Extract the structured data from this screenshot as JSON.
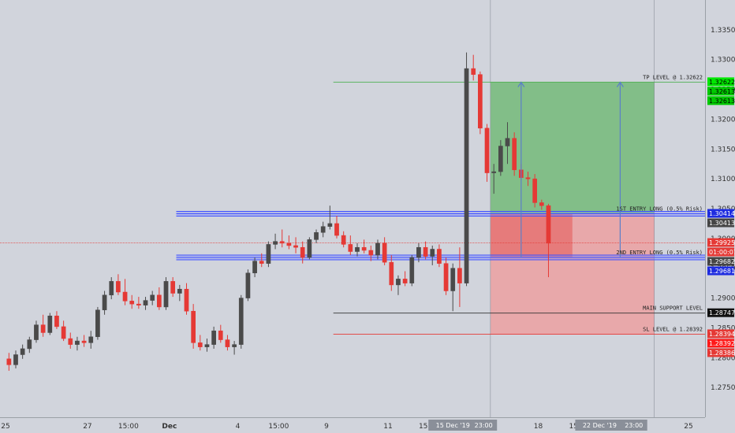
{
  "chart_data": {
    "type": "candlestick",
    "ylim": [
      1.27,
      1.34
    ],
    "y_ticks": [
      1.275,
      1.28,
      1.285,
      1.29,
      1.295,
      1.3,
      1.305,
      1.31,
      1.315,
      1.32,
      1.325,
      1.33,
      1.335
    ],
    "y_tick_labels": [
      "1.27500",
      "1.28000",
      "1.28500",
      "1.29000",
      "1.29500",
      "1.30000",
      "1.30500",
      "1.31000",
      "1.31500",
      "1.32000",
      "1.32500",
      "1.33000",
      "1.33500"
    ],
    "x_ticks": [
      {
        "label": "25",
        "x": 0
      },
      {
        "label": "27",
        "x": 12
      },
      {
        "label": "15:00",
        "x": 18
      },
      {
        "label": "Dec",
        "x": 24
      },
      {
        "label": "4",
        "x": 34
      },
      {
        "label": "15:00",
        "x": 40
      },
      {
        "label": "9",
        "x": 47
      },
      {
        "label": "11",
        "x": 56
      },
      {
        "label": "15:00",
        "x": 62
      },
      {
        "label": "18",
        "x": 78
      },
      {
        "label": "15:00",
        "x": 84
      },
      {
        "label": "25",
        "x": 100
      }
    ],
    "x_range_labels": [
      {
        "label": "15 Dec '19",
        "x": 65.5
      },
      {
        "label": "23:00",
        "x": 70
      },
      {
        "label": "22 Dec '19",
        "x": 87
      },
      {
        "label": "23:00",
        "x": 92
      }
    ],
    "candles": [
      {
        "x": 0.5,
        "o": 1.2798,
        "h": 1.2808,
        "l": 1.2778,
        "c": 1.2788
      },
      {
        "x": 1.5,
        "o": 1.2788,
        "h": 1.2812,
        "l": 1.2782,
        "c": 1.2805
      },
      {
        "x": 2.5,
        "o": 1.2805,
        "h": 1.2822,
        "l": 1.2798,
        "c": 1.2815
      },
      {
        "x": 3.5,
        "o": 1.2815,
        "h": 1.2835,
        "l": 1.2808,
        "c": 1.283
      },
      {
        "x": 4.5,
        "o": 1.283,
        "h": 1.2862,
        "l": 1.2825,
        "c": 1.2855
      },
      {
        "x": 5.5,
        "o": 1.2855,
        "h": 1.2872,
        "l": 1.2835,
        "c": 1.2842
      },
      {
        "x": 6.5,
        "o": 1.2842,
        "h": 1.2875,
        "l": 1.2838,
        "c": 1.287
      },
      {
        "x": 7.5,
        "o": 1.287,
        "h": 1.2878,
        "l": 1.2848,
        "c": 1.2852
      },
      {
        "x": 8.5,
        "o": 1.2852,
        "h": 1.2862,
        "l": 1.2828,
        "c": 1.2832
      },
      {
        "x": 9.5,
        "o": 1.2832,
        "h": 1.2842,
        "l": 1.2815,
        "c": 1.2822
      },
      {
        "x": 10.5,
        "o": 1.2822,
        "h": 1.2835,
        "l": 1.2812,
        "c": 1.2828
      },
      {
        "x": 11.5,
        "o": 1.2828,
        "h": 1.2838,
        "l": 1.2818,
        "c": 1.2825
      },
      {
        "x": 12.5,
        "o": 1.2825,
        "h": 1.2845,
        "l": 1.2815,
        "c": 1.2835
      },
      {
        "x": 13.5,
        "o": 1.2835,
        "h": 1.2885,
        "l": 1.283,
        "c": 1.288
      },
      {
        "x": 14.5,
        "o": 1.288,
        "h": 1.2912,
        "l": 1.2872,
        "c": 1.2905
      },
      {
        "x": 15.5,
        "o": 1.2905,
        "h": 1.2935,
        "l": 1.2898,
        "c": 1.2928
      },
      {
        "x": 16.5,
        "o": 1.2928,
        "h": 1.294,
        "l": 1.2905,
        "c": 1.291
      },
      {
        "x": 17.5,
        "o": 1.291,
        "h": 1.2932,
        "l": 1.2888,
        "c": 1.2895
      },
      {
        "x": 18.5,
        "o": 1.2895,
        "h": 1.2905,
        "l": 1.2882,
        "c": 1.289
      },
      {
        "x": 19.5,
        "o": 1.289,
        "h": 1.2902,
        "l": 1.2882,
        "c": 1.2888
      },
      {
        "x": 20.5,
        "o": 1.2888,
        "h": 1.2902,
        "l": 1.288,
        "c": 1.2896
      },
      {
        "x": 21.5,
        "o": 1.2896,
        "h": 1.2912,
        "l": 1.2888,
        "c": 1.2905
      },
      {
        "x": 22.5,
        "o": 1.2905,
        "h": 1.2918,
        "l": 1.288,
        "c": 1.2885
      },
      {
        "x": 23.5,
        "o": 1.2885,
        "h": 1.2935,
        "l": 1.288,
        "c": 1.2928
      },
      {
        "x": 24.5,
        "o": 1.2928,
        "h": 1.2935,
        "l": 1.2902,
        "c": 1.2908
      },
      {
        "x": 25.5,
        "o": 1.2908,
        "h": 1.2922,
        "l": 1.2895,
        "c": 1.2915
      },
      {
        "x": 26.5,
        "o": 1.2915,
        "h": 1.2925,
        "l": 1.2872,
        "c": 1.2878
      },
      {
        "x": 27.5,
        "o": 1.2878,
        "h": 1.289,
        "l": 1.2815,
        "c": 1.2825
      },
      {
        "x": 28.5,
        "o": 1.2825,
        "h": 1.2838,
        "l": 1.2812,
        "c": 1.2818
      },
      {
        "x": 29.5,
        "o": 1.2818,
        "h": 1.2832,
        "l": 1.281,
        "c": 1.2822
      },
      {
        "x": 30.5,
        "o": 1.2822,
        "h": 1.2852,
        "l": 1.2815,
        "c": 1.2845
      },
      {
        "x": 31.5,
        "o": 1.2845,
        "h": 1.2855,
        "l": 1.2825,
        "c": 1.283
      },
      {
        "x": 32.5,
        "o": 1.283,
        "h": 1.2838,
        "l": 1.2812,
        "c": 1.2818
      },
      {
        "x": 33.5,
        "o": 1.2818,
        "h": 1.2828,
        "l": 1.2805,
        "c": 1.2822
      },
      {
        "x": 34.5,
        "o": 1.2822,
        "h": 1.2905,
        "l": 1.2815,
        "c": 1.29
      },
      {
        "x": 35.5,
        "o": 1.29,
        "h": 1.2948,
        "l": 1.2895,
        "c": 1.2942
      },
      {
        "x": 36.5,
        "o": 1.2942,
        "h": 1.2968,
        "l": 1.2935,
        "c": 1.2962
      },
      {
        "x": 37.5,
        "o": 1.2962,
        "h": 1.2975,
        "l": 1.2952,
        "c": 1.2958
      },
      {
        "x": 38.5,
        "o": 1.2958,
        "h": 1.2995,
        "l": 1.2952,
        "c": 1.299
      },
      {
        "x": 39.5,
        "o": 1.299,
        "h": 1.3008,
        "l": 1.2982,
        "c": 1.2995
      },
      {
        "x": 40.5,
        "o": 1.2995,
        "h": 1.3015,
        "l": 1.2985,
        "c": 1.2992
      },
      {
        "x": 41.5,
        "o": 1.2992,
        "h": 1.3005,
        "l": 1.2982,
        "c": 1.2988
      },
      {
        "x": 42.5,
        "o": 1.2988,
        "h": 1.3002,
        "l": 1.2975,
        "c": 1.2985
      },
      {
        "x": 43.5,
        "o": 1.2985,
        "h": 1.2995,
        "l": 1.2958,
        "c": 1.2968
      },
      {
        "x": 44.5,
        "o": 1.2968,
        "h": 1.3002,
        "l": 1.2965,
        "c": 1.2998
      },
      {
        "x": 45.5,
        "o": 1.2998,
        "h": 1.3015,
        "l": 1.2992,
        "c": 1.301
      },
      {
        "x": 46.5,
        "o": 1.301,
        "h": 1.3028,
        "l": 1.3002,
        "c": 1.302
      },
      {
        "x": 47.5,
        "o": 1.302,
        "h": 1.3055,
        "l": 1.3015,
        "c": 1.3025
      },
      {
        "x": 48.5,
        "o": 1.3025,
        "h": 1.3038,
        "l": 1.3,
        "c": 1.3005
      },
      {
        "x": 49.5,
        "o": 1.3005,
        "h": 1.3012,
        "l": 1.2985,
        "c": 1.299
      },
      {
        "x": 50.5,
        "o": 1.299,
        "h": 1.3005,
        "l": 1.2972,
        "c": 1.2978
      },
      {
        "x": 51.5,
        "o": 1.2978,
        "h": 1.2992,
        "l": 1.297,
        "c": 1.2985
      },
      {
        "x": 52.5,
        "o": 1.2985,
        "h": 1.2998,
        "l": 1.2975,
        "c": 1.298
      },
      {
        "x": 53.5,
        "o": 1.298,
        "h": 1.2988,
        "l": 1.2962,
        "c": 1.2972
      },
      {
        "x": 54.5,
        "o": 1.2972,
        "h": 1.2998,
        "l": 1.2965,
        "c": 1.2992
      },
      {
        "x": 55.5,
        "o": 1.2992,
        "h": 1.3002,
        "l": 1.2955,
        "c": 1.296
      },
      {
        "x": 56.5,
        "o": 1.296,
        "h": 1.2972,
        "l": 1.2912,
        "c": 1.2922
      },
      {
        "x": 57.5,
        "o": 1.2922,
        "h": 1.2938,
        "l": 1.2905,
        "c": 1.2932
      },
      {
        "x": 58.5,
        "o": 1.2932,
        "h": 1.2945,
        "l": 1.292,
        "c": 1.2925
      },
      {
        "x": 59.5,
        "o": 1.2925,
        "h": 1.2972,
        "l": 1.292,
        "c": 1.2968
      },
      {
        "x": 60.5,
        "o": 1.2968,
        "h": 1.2992,
        "l": 1.296,
        "c": 1.2985
      },
      {
        "x": 61.5,
        "o": 1.2985,
        "h": 1.2995,
        "l": 1.2965,
        "c": 1.297
      },
      {
        "x": 62.5,
        "o": 1.297,
        "h": 1.2988,
        "l": 1.2955,
        "c": 1.2982
      },
      {
        "x": 63.5,
        "o": 1.2982,
        "h": 1.299,
        "l": 1.2952,
        "c": 1.2958
      },
      {
        "x": 64.5,
        "o": 1.2958,
        "h": 1.2968,
        "l": 1.2905,
        "c": 1.2912
      },
      {
        "x": 65.5,
        "o": 1.2912,
        "h": 1.2958,
        "l": 1.2878,
        "c": 1.295
      },
      {
        "x": 66.5,
        "o": 1.295,
        "h": 1.2985,
        "l": 1.2885,
        "c": 1.2925
      },
      {
        "x": 67.5,
        "o": 1.2925,
        "h": 1.3312,
        "l": 1.292,
        "c": 1.3285
      },
      {
        "x": 68.5,
        "o": 1.3285,
        "h": 1.3308,
        "l": 1.3265,
        "c": 1.3275
      },
      {
        "x": 69.5,
        "o": 1.3275,
        "h": 1.328,
        "l": 1.3175,
        "c": 1.3185
      },
      {
        "x": 70.5,
        "o": 1.3185,
        "h": 1.3192,
        "l": 1.3095,
        "c": 1.311
      },
      {
        "x": 71.5,
        "o": 1.311,
        "h": 1.3125,
        "l": 1.3075,
        "c": 1.3112
      },
      {
        "x": 72.5,
        "o": 1.3112,
        "h": 1.3165,
        "l": 1.3105,
        "c": 1.3155
      },
      {
        "x": 73.5,
        "o": 1.3155,
        "h": 1.3195,
        "l": 1.3125,
        "c": 1.3168
      },
      {
        "x": 74.5,
        "o": 1.3168,
        "h": 1.3178,
        "l": 1.3105,
        "c": 1.3115
      },
      {
        "x": 75.5,
        "o": 1.3115,
        "h": 1.3125,
        "l": 1.3098,
        "c": 1.3102
      },
      {
        "x": 76.5,
        "o": 1.3102,
        "h": 1.3112,
        "l": 1.3088,
        "c": 1.31
      },
      {
        "x": 77.5,
        "o": 1.31,
        "h": 1.3108,
        "l": 1.3052,
        "c": 1.306
      },
      {
        "x": 78.5,
        "o": 1.306,
        "h": 1.3065,
        "l": 1.3048,
        "c": 1.3055
      },
      {
        "x": 79.5,
        "o": 1.3055,
        "h": 1.3058,
        "l": 1.2935,
        "c": 1.2992
      }
    ],
    "position": {
      "x_start": 71,
      "x_end": 95,
      "entry": 1.30414,
      "target": 1.32622,
      "stop": 1.28392,
      "entry2": 1.29681,
      "active_end": 83
    },
    "arrows": [
      {
        "x": 75.5,
        "from": 1.2968,
        "to": 1.3262
      },
      {
        "x": 90,
        "from": 1.2968,
        "to": 1.3262
      }
    ],
    "levels": [
      {
        "name": "TP LEVEL @ 1.32622",
        "price": 1.32622,
        "color": "#4caf50",
        "x_start": 48
      },
      {
        "name": "1ST ENTRY LONG (0.5% Risk)",
        "price": 1.30414,
        "color": "#3f51ff",
        "x_start": 25,
        "band": true
      },
      {
        "name": "2ND ENTRY LONG (0.5% Risk)",
        "price": 1.29681,
        "color": "#3f51ff",
        "x_start": 25,
        "band": true
      },
      {
        "name": "MAIN SUPPORT LEVEL",
        "price": 1.28747,
        "color": "#333333",
        "x_start": 48
      },
      {
        "name": "SL LEVEL @ 1.28392",
        "price": 1.28392,
        "color": "#e53935",
        "x_start": 48
      }
    ],
    "current_price_line": 1.29925,
    "vertical_markers": [
      71,
      95
    ],
    "price_tags": [
      {
        "text": "1.32622",
        "price": 1.32622,
        "bg": "#00e600",
        "fg": "#000000"
      },
      {
        "text": "1.32613",
        "price": 1.32613,
        "bg": "#00c800",
        "fg": "#000000"
      },
      {
        "text": "1.32613",
        "price": 1.32613,
        "bg": "#00c800",
        "fg": "#000000"
      },
      {
        "text": "1.30414",
        "price": 1.30414,
        "bg": "#1f2de0",
        "fg": "#ffffff"
      },
      {
        "text": "1.30413",
        "price": 1.30413,
        "bg": "#454545",
        "fg": "#ffffff"
      },
      {
        "text": "1.29925",
        "price": 1.29925,
        "bg": "#e53935",
        "fg": "#ffffff"
      },
      {
        "text": "01:00:07",
        "price": 1.29925,
        "bg": "#e53935",
        "fg": "#ffffff"
      },
      {
        "text": "1.29681",
        "price": 1.29681,
        "bg": "#1f2de0",
        "fg": "#ffffff"
      },
      {
        "text": "1.29682",
        "price": 1.29682,
        "bg": "#454545",
        "fg": "#ffffff"
      },
      {
        "text": "1.28747",
        "price": 1.28747,
        "bg": "#111111",
        "fg": "#ffffff"
      },
      {
        "text": "1.28392",
        "price": 1.28392,
        "bg": "#ff1a1a",
        "fg": "#ffffff"
      },
      {
        "text": "1.28394",
        "price": 1.28394,
        "bg": "#e53935",
        "fg": "#ffffff"
      },
      {
        "text": "1.28386",
        "price": 1.28386,
        "bg": "#e53935",
        "fg": "#ffffff"
      }
    ],
    "colors": {
      "up": "#4a4a4a",
      "down": "#e53935",
      "background": "#d1d4dc",
      "profit_zone": "#4caf50",
      "loss_zone": "#ef9a9a",
      "active_loss": "#e57373",
      "arrow": "#5b7fc9"
    }
  }
}
